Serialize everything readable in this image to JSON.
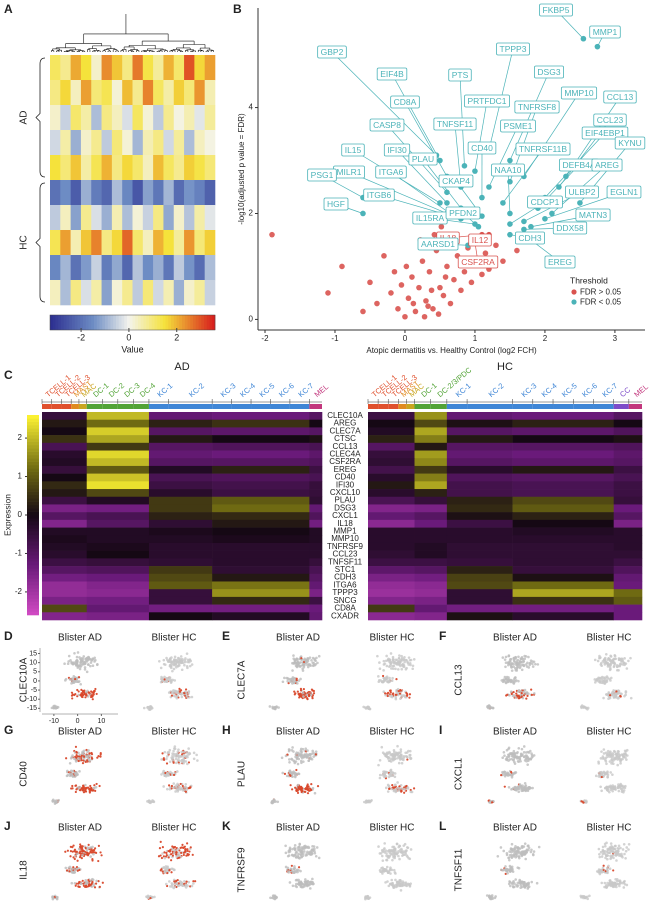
{
  "panel_a": {
    "letter": "A",
    "groups": [
      "AD",
      "HC"
    ],
    "legend_title": "Value",
    "lim": [
      -3.3,
      3.6
    ],
    "ticks": [
      -2,
      0,
      2
    ],
    "rows": [
      [
        1.2,
        0.8,
        2.1,
        1.5,
        0.3,
        2.4,
        1.8,
        0.9,
        2.6,
        1.4,
        0.7,
        2.0,
        1.1,
        3.0,
        1.6,
        2.2
      ],
      [
        0.9,
        1.6,
        0.4,
        2.2,
        1.0,
        1.3,
        0.2,
        1.9,
        0.8,
        2.5,
        1.2,
        0.6,
        1.7,
        1.0,
        2.3,
        0.5
      ],
      [
        0.3,
        -0.5,
        1.1,
        0.6,
        -0.8,
        0.9,
        0.4,
        -0.3,
        1.2,
        0.2,
        -0.6,
        0.8,
        0.1,
        0.5,
        -0.2,
        0.7
      ],
      [
        -0.4,
        0.6,
        -1.0,
        0.3,
        0.8,
        -0.6,
        1.0,
        0.2,
        -0.9,
        0.5,
        0.9,
        -0.4,
        0.7,
        -0.8,
        0.4,
        0.1
      ],
      [
        1.5,
        1.0,
        1.8,
        0.6,
        1.3,
        2.0,
        0.9,
        1.6,
        1.1,
        0.4,
        1.9,
        1.2,
        0.8,
        1.7,
        1.4,
        1.0
      ],
      [
        -2.0,
        -1.5,
        -2.4,
        -1.0,
        -1.8,
        -2.2,
        -0.8,
        -1.6,
        -2.5,
        -1.2,
        -1.9,
        -0.9,
        -2.1,
        -1.4,
        -1.7,
        -2.3
      ],
      [
        -0.6,
        0.4,
        -1.2,
        0.8,
        -0.3,
        -1.0,
        0.5,
        -0.8,
        0.2,
        -0.5,
        0.9,
        -1.1,
        0.3,
        -0.7,
        0.6,
        -0.2
      ],
      [
        1.3,
        2.2,
        0.5,
        1.8,
        2.5,
        0.9,
        1.6,
        2.8,
        1.1,
        0.4,
        2.0,
        1.5,
        0.7,
        2.3,
        1.0,
        1.7
      ],
      [
        -1.6,
        -0.9,
        -2.0,
        -1.3,
        -0.5,
        -1.8,
        -1.1,
        -2.2,
        -0.7,
        -1.5,
        -1.0,
        -1.9,
        -0.6,
        -1.4,
        -2.1,
        -0.8
      ],
      [
        0.4,
        -0.8,
        0.9,
        -0.3,
        0.6,
        -1.2,
        0.2,
        0.8,
        -0.6,
        1.0,
        -0.4,
        0.5,
        -1.0,
        0.3,
        0.7,
        -0.5
      ]
    ]
  },
  "chart_data": {
    "type": "scatter",
    "panel_letter": "B",
    "xlabel": "Atopic dermatitis vs. Healthy Control (log2 FCH)",
    "ylabel": "-log10(adjusted p value = FDR)",
    "xlim": [
      -2.1,
      3.43
    ],
    "ylim": [
      -0.2,
      5.88
    ],
    "xticks": [
      -2,
      -1,
      0,
      1,
      2,
      3
    ],
    "yticks": [
      0,
      2,
      4
    ],
    "legend_title": "Threshold",
    "series": [
      {
        "name": "FDR > 0.05",
        "color": "#d9534f",
        "x": [
          -1.9,
          -1.1,
          -0.9,
          -0.5,
          -0.4,
          -0.3,
          -0.2,
          -0.1,
          0,
          0.05,
          0.1,
          0.15,
          0.2,
          0.25,
          0.3,
          0.35,
          0.4,
          0.45,
          0.5,
          0.55,
          0.6,
          0.65,
          0.7,
          0.75,
          0.8,
          0.85,
          0.9,
          0.95,
          1.0,
          1.1,
          1.15,
          1.2,
          1.3,
          1.4,
          1.6,
          1.9,
          -0.6,
          -0.05,
          0.12,
          0.28,
          0.38,
          0.48,
          0.58,
          0.68,
          0.02,
          -0.15,
          0.22,
          0.33,
          0.42,
          0.52
        ],
        "y": [
          1.6,
          0.5,
          1.0,
          0.7,
          0.3,
          1.2,
          0.5,
          0.2,
          0.05,
          0.4,
          0.8,
          0.15,
          0.6,
          1.1,
          0.35,
          0.9,
          0.2,
          1.3,
          0.6,
          0.45,
          1.0,
          0.3,
          0.75,
          1.2,
          0.55,
          0.9,
          1.35,
          0.7,
          1.05,
          0.85,
          1.25,
          0.95,
          1.4,
          1.1,
          1.3,
          1.5,
          0.15,
          0.65,
          0.3,
          0.05,
          0.55,
          0.1,
          0.8,
          1.4,
          1.0,
          0.9,
          1.5,
          0.25,
          1.6,
          1.75
        ]
      },
      {
        "name": "FDR < 0.05",
        "color": "#4bb3b8",
        "x": [],
        "y": []
      }
    ],
    "annotations": [
      {
        "text": "GBP2",
        "x": 0.45,
        "y": 3.1,
        "series": 1
      },
      {
        "text": "EIF4B",
        "x": 0.5,
        "y": 3.0,
        "series": 1
      },
      {
        "text": "PTS",
        "x": 0.85,
        "y": 2.9,
        "series": 1
      },
      {
        "text": "TPPP3",
        "x": 1.2,
        "y": 3.2,
        "series": 1
      },
      {
        "text": "DSG3",
        "x": 1.5,
        "y": 3.0,
        "series": 1
      },
      {
        "text": "FKBP5",
        "x": 2.55,
        "y": 5.3,
        "series": 1
      },
      {
        "text": "MMP1",
        "x": 2.75,
        "y": 5.15,
        "series": 1
      },
      {
        "text": "CD8A",
        "x": 0.6,
        "y": 2.7,
        "series": 1
      },
      {
        "text": "PRTFDC1",
        "x": 1.0,
        "y": 2.8,
        "series": 1
      },
      {
        "text": "MMP10",
        "x": 1.7,
        "y": 2.7,
        "series": 1
      },
      {
        "text": "TNFRSF8",
        "x": 1.5,
        "y": 2.6,
        "series": 1
      },
      {
        "text": "CCL13",
        "x": 2.3,
        "y": 2.7,
        "series": 1
      },
      {
        "text": "TNFSF11",
        "x": 0.8,
        "y": 2.5,
        "series": 1
      },
      {
        "text": "PSME1",
        "x": 1.2,
        "y": 2.5,
        "series": 1
      },
      {
        "text": "CCL23",
        "x": 2.2,
        "y": 2.5,
        "series": 1
      },
      {
        "text": "CASP8",
        "x": 0.6,
        "y": 2.4,
        "series": 1
      },
      {
        "text": "EIF4EBP1",
        "x": 2.0,
        "y": 2.3,
        "series": 1
      },
      {
        "text": "KYNU",
        "x": 2.5,
        "y": 2.2,
        "series": 1
      },
      {
        "text": "IL15",
        "x": 0.5,
        "y": 2.2,
        "series": 1
      },
      {
        "text": "IFI30",
        "x": 0.6,
        "y": 2.2,
        "series": 1
      },
      {
        "text": "CD40",
        "x": 1.1,
        "y": 2.3,
        "series": 1
      },
      {
        "text": "TNFRSF11B",
        "x": 1.4,
        "y": 2.2,
        "series": 1
      },
      {
        "text": "PLAU",
        "x": 0.8,
        "y": 2.1,
        "series": 1
      },
      {
        "text": "DEFB4A",
        "x": 1.9,
        "y": 2.1,
        "series": 1
      },
      {
        "text": "AREG",
        "x": 2.1,
        "y": 2.0,
        "series": 1
      },
      {
        "text": "MILR1",
        "x": 0.6,
        "y": 2.0,
        "series": 1
      },
      {
        "text": "ITGA6",
        "x": 0.7,
        "y": 1.95,
        "series": 1
      },
      {
        "text": "NAA10",
        "x": 1.5,
        "y": 2.0,
        "series": 1
      },
      {
        "text": "CKAP4",
        "x": 1.1,
        "y": 1.95,
        "series": 1
      },
      {
        "text": "PSG1",
        "x": -0.6,
        "y": 2.3,
        "series": 1
      },
      {
        "text": "ULBP2",
        "x": 1.7,
        "y": 1.85,
        "series": 1
      },
      {
        "text": "EGLN1",
        "x": 2.0,
        "y": 1.9,
        "series": 1
      },
      {
        "text": "CDCP1",
        "x": 1.5,
        "y": 1.8,
        "series": 1
      },
      {
        "text": "HGF",
        "x": -0.6,
        "y": 2.0,
        "series": 1
      },
      {
        "text": "ITGB6",
        "x": 0.8,
        "y": 1.9,
        "series": 1
      },
      {
        "text": "IL15RA",
        "x": 1.0,
        "y": 1.8,
        "series": 1
      },
      {
        "text": "PFDN2",
        "x": 1.05,
        "y": 1.75,
        "series": 1
      },
      {
        "text": "IL12",
        "x": 1.2,
        "y": 1.6,
        "series": 0
      },
      {
        "text": "MATN3",
        "x": 1.8,
        "y": 1.75,
        "series": 1
      },
      {
        "text": "DDX58",
        "x": 1.7,
        "y": 1.7,
        "series": 1
      },
      {
        "text": "CDH3",
        "x": 1.5,
        "y": 1.6,
        "series": 1
      },
      {
        "text": "IL18",
        "x": 1.1,
        "y": 1.6,
        "series": 0
      },
      {
        "text": "AARSD1",
        "x": 0.9,
        "y": 1.4,
        "series": 1
      },
      {
        "text": "CSF2RA",
        "x": 1.0,
        "y": 1.45,
        "series": 0
      },
      {
        "text": "EREG",
        "x": 1.7,
        "y": 1.6,
        "series": 1
      }
    ]
  },
  "panel_c": {
    "letter": "C",
    "sides": [
      "AD",
      "HC"
    ],
    "legend_title": "Expression",
    "lim": [
      -2.6,
      2.6
    ],
    "ticks": [
      2,
      1,
      0,
      -1,
      -2
    ],
    "ad_clusters": [
      "TCELL-1",
      "TCELL-2",
      "TCELL-3",
      "MAST",
      "MAC",
      "DC-1",
      "DC-2",
      "DC-3",
      "DC-4",
      "KC-1",
      "KC-2",
      "KC-3",
      "KC-4",
      "KC-5",
      "KC-6",
      "KC-7",
      "MEL"
    ],
    "hc_clusters": [
      "TCELL-1",
      "TCELL-2",
      "TCELL-3",
      "MAST",
      "MAC",
      "DC-1",
      "DC-2/3/PDC",
      "KC-1",
      "KC-2",
      "KC-3",
      "KC-4",
      "KC-5",
      "KC-6",
      "KC-7",
      "CC",
      "MEL"
    ],
    "genes": [
      "CLEC10A",
      "AREG",
      "CLEC7A",
      "CTSC",
      "CCL13",
      "CLEC4A",
      "CSF2RA",
      "EREG",
      "CD40",
      "IFI30",
      "CXCL10",
      "PLAU",
      "DSG3",
      "CXCL1",
      "IL18",
      "MMP1",
      "MMP10",
      "TNFRSF9",
      "CCL23",
      "TNFSF11",
      "STC1",
      "CDH3",
      "ITGA6",
      "TPPP3",
      "SNCG",
      "CD8A",
      "CXADR"
    ],
    "rows": [
      [
        -0.5,
        2.0,
        -1.2,
        -1.3,
        -1.0,
        -0.6,
        1.6,
        -1.2,
        -1.3,
        -1.0
      ],
      [
        0.2,
        1.2,
        0.3,
        0.5,
        0.0,
        0.0,
        0.8,
        0.1,
        0.3,
        0.0
      ],
      [
        0.0,
        2.2,
        -1.0,
        -1.1,
        -1.0,
        -0.2,
        1.8,
        -1.0,
        -1.1,
        -0.9
      ],
      [
        0.5,
        1.8,
        0.2,
        0.0,
        0.1,
        0.3,
        1.4,
        0.2,
        0.0,
        0.1
      ],
      [
        -0.8,
        0.6,
        -1.0,
        -0.9,
        -0.8,
        -1.0,
        0.2,
        -1.0,
        -1.0,
        -0.9
      ],
      [
        -0.3,
        2.3,
        -1.2,
        -1.3,
        -1.1,
        -0.5,
        1.7,
        -1.2,
        -1.3,
        -1.1
      ],
      [
        -0.2,
        2.0,
        -1.0,
        -1.0,
        -0.9,
        -0.4,
        1.5,
        -1.0,
        -1.1,
        -1.0
      ],
      [
        -0.5,
        1.0,
        -0.2,
        0.3,
        -0.6,
        -0.7,
        0.6,
        -0.3,
        0.2,
        -0.6
      ],
      [
        0.0,
        2.1,
        -0.8,
        -0.9,
        -0.8,
        -0.3,
        1.4,
        -0.9,
        -1.0,
        -0.8
      ],
      [
        0.4,
        2.4,
        -0.6,
        -0.7,
        -0.5,
        0.2,
        1.8,
        -0.7,
        -0.8,
        -0.6
      ],
      [
        0.2,
        0.8,
        -0.3,
        -0.6,
        -0.5,
        -0.3,
        0.3,
        -0.7,
        -0.8,
        -0.6
      ],
      [
        -0.6,
        -0.2,
        0.6,
        1.0,
        -0.4,
        -0.8,
        -0.5,
        0.3,
        0.8,
        -0.5
      ],
      [
        -1.5,
        -1.4,
        0.6,
        1.2,
        -1.2,
        -1.6,
        -1.5,
        0.4,
        1.0,
        -1.3
      ],
      [
        -1.0,
        -0.8,
        0.3,
        0.4,
        -0.9,
        -1.2,
        -1.0,
        0.1,
        0.3,
        -1.0
      ],
      [
        -1.6,
        -1.0,
        -0.4,
        0.2,
        -1.4,
        -1.7,
        -1.3,
        -0.6,
        0.0,
        -1.5
      ],
      [
        -0.2,
        -0.2,
        -0.1,
        0.0,
        -0.2,
        -0.3,
        -0.3,
        -0.3,
        -0.2,
        -0.3
      ],
      [
        -0.1,
        -0.2,
        -0.2,
        -0.1,
        -0.2,
        -0.3,
        -0.3,
        -0.3,
        -0.3,
        -0.3
      ],
      [
        -0.2,
        -0.1,
        -0.3,
        -0.3,
        -0.3,
        -0.3,
        -0.2,
        -0.4,
        -0.4,
        -0.3
      ],
      [
        -0.3,
        0.0,
        -0.3,
        -0.3,
        -0.3,
        -0.4,
        -0.2,
        -0.4,
        -0.4,
        -0.4
      ],
      [
        -0.6,
        -0.5,
        -0.4,
        -0.3,
        -0.5,
        -0.6,
        -0.6,
        -0.5,
        -0.4,
        -0.6
      ],
      [
        -1.0,
        -0.9,
        0.6,
        -0.4,
        -0.8,
        -1.1,
        -1.0,
        0.3,
        -0.5,
        -0.9
      ],
      [
        -1.4,
        -1.3,
        0.8,
        0.2,
        -1.0,
        -1.5,
        -1.4,
        0.7,
        0.1,
        -1.2
      ],
      [
        -1.8,
        -1.6,
        1.0,
        1.3,
        -1.2,
        -1.8,
        -1.7,
        0.8,
        1.2,
        -1.3
      ],
      [
        -1.8,
        -1.7,
        -0.5,
        1.6,
        -1.5,
        -1.9,
        -1.8,
        -0.4,
        1.8,
        1.2
      ],
      [
        -1.5,
        -1.4,
        -0.5,
        0.4,
        -0.6,
        -1.6,
        -1.5,
        -0.4,
        0.5,
        1.0
      ],
      [
        0.8,
        -1.2,
        -1.4,
        -1.4,
        -1.3,
        0.6,
        -1.2,
        -1.4,
        -1.4,
        -1.3
      ],
      [
        -1.6,
        -1.5,
        0.0,
        -0.2,
        -1.2,
        -1.7,
        -1.6,
        0.1,
        -0.3,
        -1.3
      ]
    ]
  },
  "umap": {
    "titles": [
      "Blister AD",
      "Blister HC"
    ],
    "xlim": [
      -15,
      17
    ],
    "ylim": [
      -17,
      18
    ],
    "xticks": [
      -10,
      0,
      10
    ],
    "yticks": [
      15,
      10,
      5,
      0,
      -5,
      -10,
      -15
    ],
    "panels": [
      {
        "letter": "D",
        "gene": "CLEC10A"
      },
      {
        "letter": "E",
        "gene": "CLEC7A"
      },
      {
        "letter": "F",
        "gene": "CCL13"
      },
      {
        "letter": "G",
        "gene": "CD40"
      },
      {
        "letter": "H",
        "gene": "PLAU"
      },
      {
        "letter": "I",
        "gene": "CXCL1"
      },
      {
        "letter": "J",
        "gene": "IL18"
      },
      {
        "letter": "K",
        "gene": "TNFRSF9"
      },
      {
        "letter": "L",
        "gene": "TNFSF11"
      }
    ]
  }
}
